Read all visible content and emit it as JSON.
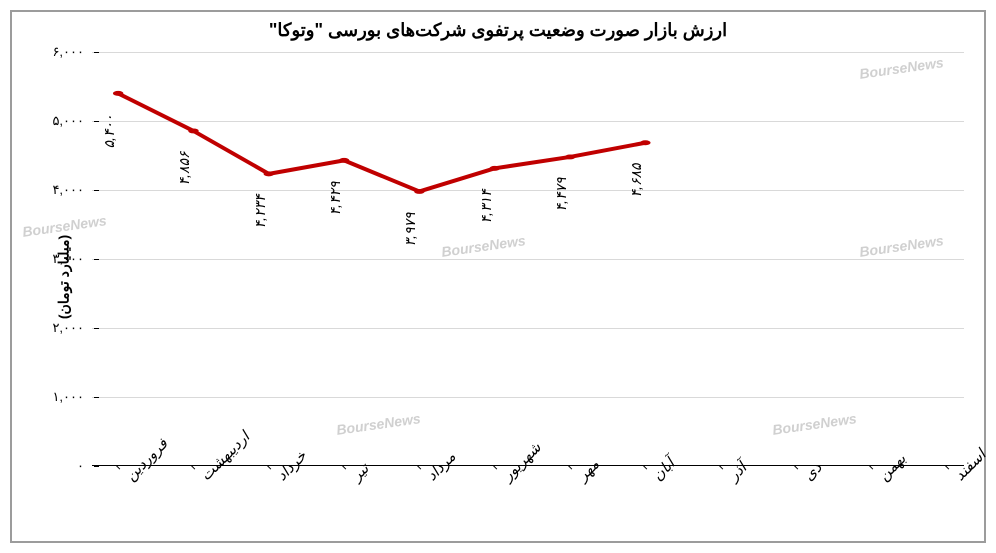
{
  "chart": {
    "type": "line",
    "title": "ارزش بازار صورت وضعیت پرتفوی شرکت‌های بورسی \"وتوکا\"",
    "title_fontsize": 18,
    "y_label": "(میلیارد تومان)",
    "y_label_fontsize": 14,
    "background_color": "#ffffff",
    "border_color": "#9c9c9c",
    "grid_color": "#d9d9d9",
    "line_color": "#c00000",
    "line_width": 4,
    "marker_color": "#c00000",
    "marker_size": 4,
    "ylim": [
      0,
      6000
    ],
    "ytick_step": 1000,
    "yticks_labels": [
      "۰",
      "۱,۰۰۰",
      "۲,۰۰۰",
      "۳,۰۰۰",
      "۴,۰۰۰",
      "۵,۰۰۰",
      "۶,۰۰۰"
    ],
    "yticks_values": [
      0,
      1000,
      2000,
      3000,
      4000,
      5000,
      6000
    ],
    "categories": [
      "فروردین",
      "اردیبهشت",
      "خرداد",
      "تیر",
      "مرداد",
      "شهریور",
      "مهر",
      "آبان",
      "آذر",
      "دی",
      "بهمن",
      "اسفند"
    ],
    "values": [
      5400,
      4856,
      4234,
      4429,
      3979,
      4314,
      4479,
      4685,
      null,
      null,
      null,
      null
    ],
    "data_labels": [
      "۵,۴۰۰",
      "۴,۸۵۶",
      "۴,۲۳۴",
      "۴,۴۲۹",
      "۳,۹۷۹",
      "۴,۳۱۴",
      "۴,۴۷۹",
      "۴,۶۸۵",
      "",
      "",
      "",
      ""
    ],
    "tick_fontsize": 13,
    "category_fontsize": 15,
    "data_label_fontsize": 14,
    "watermark_text": "BourseNews",
    "watermark_color": "#d0d0d0"
  }
}
